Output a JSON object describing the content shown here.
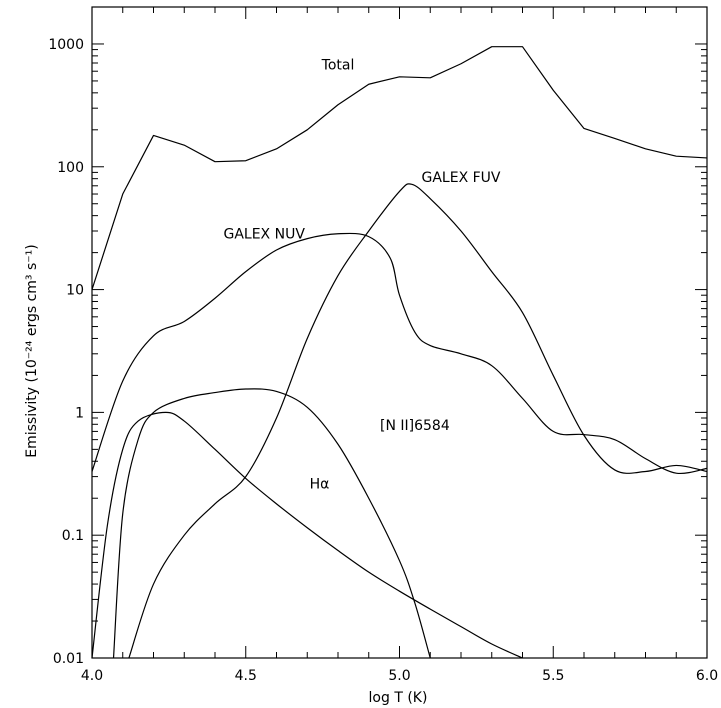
{
  "chart_data": {
    "type": "line",
    "title": "",
    "xlabel": "log T (K)",
    "ylabel": "Emissivity (10⁻²⁴ ergs cm³ s⁻¹)",
    "xlim": [
      4.0,
      6.0
    ],
    "ylim": [
      0.01,
      2000
    ],
    "yscale": "log",
    "grid": false,
    "x_ticks": [
      {
        "value": 4.0,
        "label": "4.0"
      },
      {
        "value": 4.5,
        "label": "4.5"
      },
      {
        "value": 5.0,
        "label": "5.0"
      },
      {
        "value": 5.5,
        "label": "5.5"
      },
      {
        "value": 6.0,
        "label": "6.0"
      }
    ],
    "y_ticks": [
      {
        "value": 0.01,
        "label": "0.01"
      },
      {
        "value": 0.1,
        "label": "0.1"
      },
      {
        "value": 1,
        "label": "1"
      },
      {
        "value": 10,
        "label": "10"
      },
      {
        "value": 100,
        "label": "100"
      },
      {
        "value": 1000,
        "label": "1000"
      }
    ],
    "series": [
      {
        "name": "Total",
        "label_at": [
          4.8,
          620
        ],
        "points": [
          [
            4.0,
            10
          ],
          [
            4.1,
            60
          ],
          [
            4.2,
            180
          ],
          [
            4.3,
            150
          ],
          [
            4.4,
            110
          ],
          [
            4.5,
            112
          ],
          [
            4.6,
            140
          ],
          [
            4.7,
            200
          ],
          [
            4.8,
            320
          ],
          [
            4.9,
            470
          ],
          [
            5.0,
            540
          ],
          [
            5.1,
            530
          ],
          [
            5.2,
            690
          ],
          [
            5.3,
            950
          ],
          [
            5.4,
            950
          ],
          [
            5.5,
            420
          ],
          [
            5.6,
            205
          ],
          [
            5.7,
            170
          ],
          [
            5.8,
            140
          ],
          [
            5.9,
            122
          ],
          [
            6.0,
            118
          ]
        ]
      },
      {
        "name": "GALEX FUV",
        "label_at": [
          5.2,
          75
        ],
        "points": [
          [
            4.12,
            0.01
          ],
          [
            4.2,
            0.04
          ],
          [
            4.3,
            0.1
          ],
          [
            4.4,
            0.18
          ],
          [
            4.5,
            0.3
          ],
          [
            4.6,
            0.9
          ],
          [
            4.7,
            4
          ],
          [
            4.8,
            13
          ],
          [
            4.9,
            30
          ],
          [
            5.0,
            63
          ],
          [
            5.04,
            72
          ],
          [
            5.1,
            55
          ],
          [
            5.2,
            30
          ],
          [
            5.3,
            14
          ],
          [
            5.4,
            6.5
          ],
          [
            5.5,
            2
          ],
          [
            5.6,
            0.65
          ],
          [
            5.7,
            0.34
          ],
          [
            5.8,
            0.33
          ],
          [
            5.9,
            0.37
          ],
          [
            6.0,
            0.33
          ]
        ]
      },
      {
        "name": "GALEX NUV",
        "label_at": [
          4.56,
          26
        ],
        "points": [
          [
            4.0,
            0.33
          ],
          [
            4.1,
            1.8
          ],
          [
            4.2,
            4.2
          ],
          [
            4.3,
            5.5
          ],
          [
            4.4,
            8.5
          ],
          [
            4.5,
            14
          ],
          [
            4.6,
            21
          ],
          [
            4.7,
            26
          ],
          [
            4.8,
            28.5
          ],
          [
            4.9,
            27
          ],
          [
            4.97,
            18
          ],
          [
            5.0,
            9
          ],
          [
            5.05,
            4.5
          ],
          [
            5.1,
            3.5
          ],
          [
            5.2,
            3.0
          ],
          [
            5.3,
            2.4
          ],
          [
            5.4,
            1.3
          ],
          [
            5.5,
            0.7
          ],
          [
            5.6,
            0.66
          ],
          [
            5.7,
            0.6
          ],
          [
            5.8,
            0.42
          ],
          [
            5.9,
            0.32
          ],
          [
            6.0,
            0.35
          ]
        ]
      },
      {
        "name": "[N II]6584",
        "label_at": [
          5.05,
          0.72
        ],
        "points": [
          [
            4.07,
            0.01
          ],
          [
            4.1,
            0.15
          ],
          [
            4.15,
            0.6
          ],
          [
            4.2,
            1.0
          ],
          [
            4.3,
            1.3
          ],
          [
            4.4,
            1.45
          ],
          [
            4.5,
            1.55
          ],
          [
            4.6,
            1.48
          ],
          [
            4.7,
            1.1
          ],
          [
            4.8,
            0.55
          ],
          [
            4.9,
            0.2
          ],
          [
            5.0,
            0.062
          ],
          [
            5.05,
            0.028
          ],
          [
            5.1,
            0.01
          ]
        ]
      },
      {
        "name": "Hα",
        "label_at": [
          4.74,
          0.24
        ],
        "points": [
          [
            4.0,
            0.01
          ],
          [
            4.05,
            0.12
          ],
          [
            4.1,
            0.5
          ],
          [
            4.15,
            0.85
          ],
          [
            4.24,
            1.0
          ],
          [
            4.3,
            0.85
          ],
          [
            4.4,
            0.5
          ],
          [
            4.5,
            0.29
          ],
          [
            4.6,
            0.18
          ],
          [
            4.7,
            0.115
          ],
          [
            4.8,
            0.075
          ],
          [
            4.9,
            0.05
          ],
          [
            5.0,
            0.035
          ],
          [
            5.1,
            0.025
          ],
          [
            5.2,
            0.018
          ],
          [
            5.3,
            0.013
          ],
          [
            5.4,
            0.01
          ]
        ]
      }
    ]
  }
}
